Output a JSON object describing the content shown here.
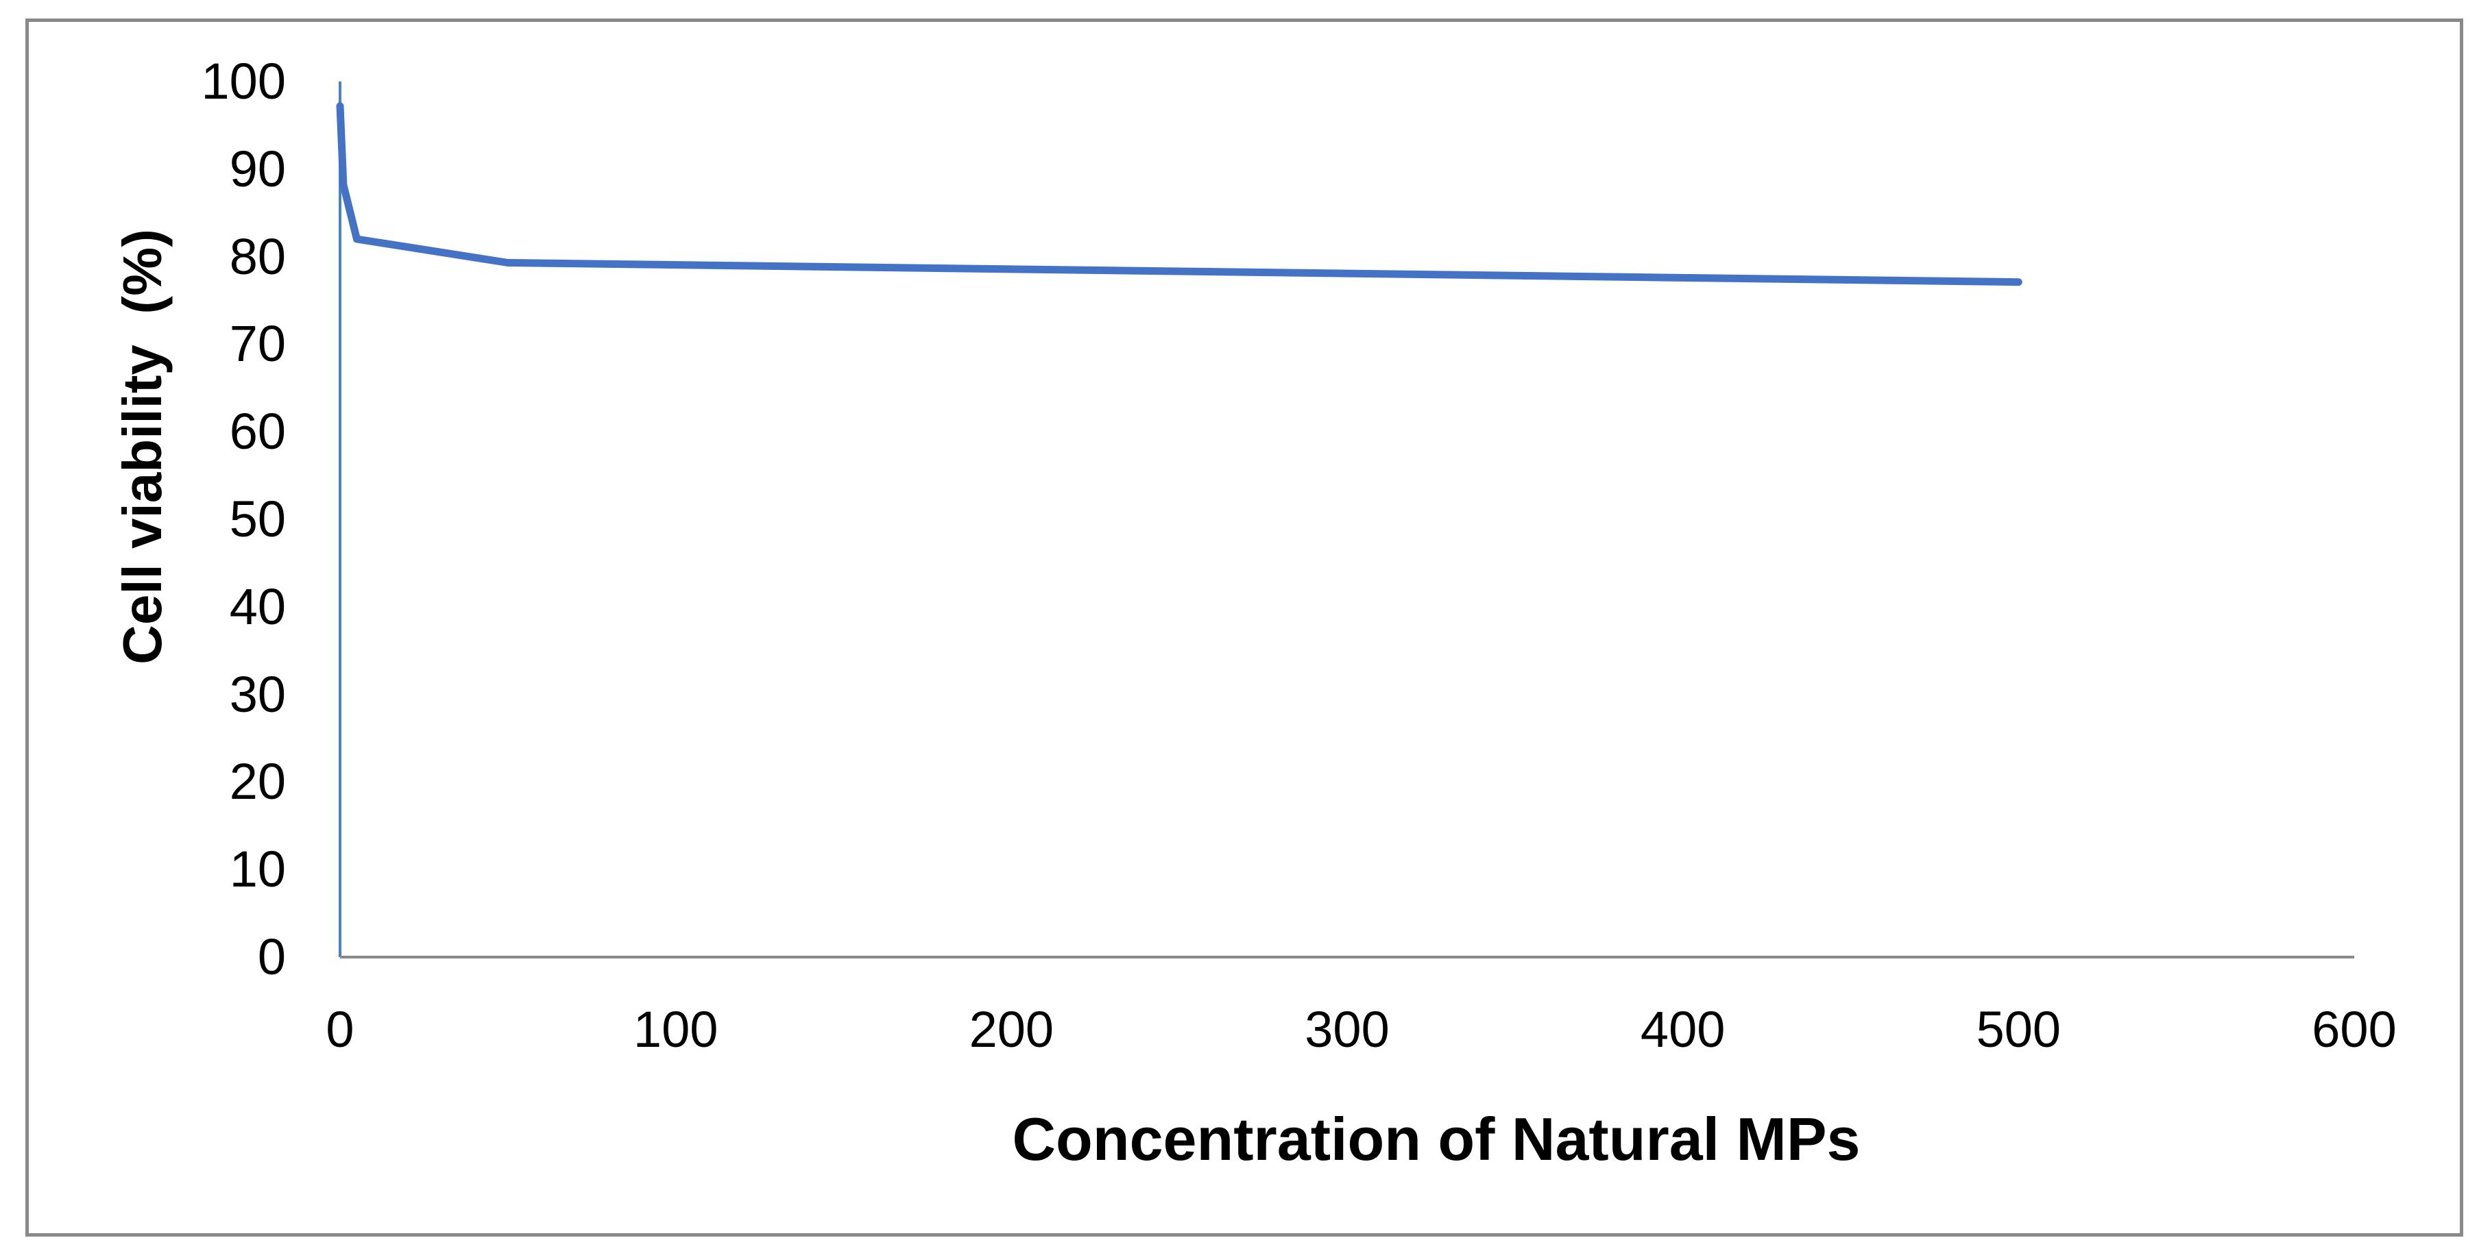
{
  "chart_data": {
    "type": "line",
    "title": "",
    "xlabel": "Concentration of Natural MPs",
    "ylabel": "Cell viability  (%)",
    "xlim": [
      0,
      600
    ],
    "ylim": [
      0,
      100
    ],
    "x_ticks": [
      0,
      100,
      200,
      300,
      400,
      500,
      600
    ],
    "y_ticks": [
      0,
      10,
      20,
      30,
      40,
      50,
      60,
      70,
      80,
      90,
      100
    ],
    "grid": false,
    "legend": null,
    "series": [
      {
        "name": "Cell viability",
        "color": "#4472C4",
        "x": [
          0,
          1,
          5,
          50,
          500
        ],
        "y": [
          97.2,
          88.2,
          82.0,
          79.3,
          77.1
        ]
      }
    ]
  },
  "colors": {
    "line": "#4472C4",
    "y_axis": "#4F81BD",
    "x_axis": "#898989",
    "frame": "#898989"
  },
  "labels": {
    "xlabel": "Concentration of Natural MPs",
    "ylabel": "Cell viability  (%)",
    "y_ticks": [
      "0",
      "10",
      "20",
      "30",
      "40",
      "50",
      "60",
      "70",
      "80",
      "90",
      "100"
    ],
    "x_ticks": [
      "0",
      "100",
      "200",
      "300",
      "400",
      "500",
      "600"
    ]
  }
}
